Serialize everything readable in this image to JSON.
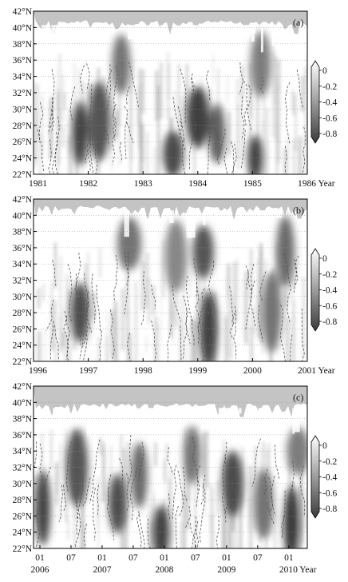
{
  "chart_data": [
    {
      "type": "heatmap",
      "panel_label": "(a)",
      "x_start_year": 1981,
      "x_end_year": 1986,
      "x_ticks": [
        "1981",
        "1982",
        "1983",
        "1984",
        "1985",
        "1986 Year"
      ],
      "y_ticks": [
        "22°N",
        "24°N",
        "26°N",
        "28°N",
        "30°N",
        "32°N",
        "34°N",
        "36°N",
        "38°N",
        "40°N",
        "42°N"
      ],
      "ylim": [
        22,
        42
      ],
      "grid": true,
      "colorbar": {
        "ticks": [
          "0",
          "-0.2",
          "-0.4",
          "-0.6",
          "-0.8"
        ],
        "range": [
          -0.9,
          0.1
        ]
      },
      "masked_top_latitude": 40.5,
      "dark_anomalies": [
        {
          "t": 1981.85,
          "lat": 27.0,
          "value": -0.85
        },
        {
          "t": 1982.2,
          "lat": 28.5,
          "value": -0.75
        },
        {
          "t": 1982.6,
          "lat": 35.5,
          "value": -0.6
        },
        {
          "t": 1983.55,
          "lat": 24.5,
          "value": -0.8
        },
        {
          "t": 1984.0,
          "lat": 29.0,
          "value": -0.85
        },
        {
          "t": 1984.35,
          "lat": 27.0,
          "value": -0.7
        },
        {
          "t": 1985.05,
          "lat": 24.0,
          "value": -0.85
        },
        {
          "t": 1985.15,
          "lat": 35.5,
          "value": -0.55
        }
      ]
    },
    {
      "type": "heatmap",
      "panel_label": "(b)",
      "x_start_year": 1996,
      "x_end_year": 2001,
      "x_ticks": [
        "1996",
        "1997",
        "1998",
        "1999",
        "2000",
        "2001 Year"
      ],
      "y_ticks": [
        "22°N",
        "24°N",
        "26°N",
        "28°N",
        "30°N",
        "32°N",
        "34°N",
        "36°N",
        "38°N",
        "40°N",
        "42°N"
      ],
      "ylim": [
        22,
        42
      ],
      "grid": true,
      "colorbar": {
        "ticks": [
          "0",
          "-0.2",
          "-0.4",
          "-0.6",
          "-0.8"
        ],
        "range": [
          -0.9,
          0.1
        ]
      },
      "masked_top_latitude": 40.8,
      "dark_anomalies": [
        {
          "t": 1996.85,
          "lat": 28.0,
          "value": -0.8
        },
        {
          "t": 1997.75,
          "lat": 36.5,
          "value": -0.6
        },
        {
          "t": 1998.6,
          "lat": 35.0,
          "value": -0.5
        },
        {
          "t": 1999.1,
          "lat": 35.5,
          "value": -0.75
        },
        {
          "t": 1999.2,
          "lat": 26.0,
          "value": -0.85
        },
        {
          "t": 2000.35,
          "lat": 28.0,
          "value": -0.6
        },
        {
          "t": 2000.6,
          "lat": 35.5,
          "value": -0.65
        }
      ]
    },
    {
      "type": "heatmap",
      "panel_label": "(c)",
      "x_start_year": 2006,
      "x_end_year": 2010.4,
      "x_ticks": [
        "01",
        "07",
        "01",
        "07",
        "01",
        "07",
        "01",
        "07",
        "01"
      ],
      "x_tick_years": [
        "2006",
        "2007",
        "2008",
        "2009",
        "2010 Year"
      ],
      "y_ticks": [
        "22°N",
        "24°N",
        "26°N",
        "28°N",
        "30°N",
        "32°N",
        "34°N",
        "36°N",
        "38°N",
        "40°N",
        "42°N"
      ],
      "ylim": [
        22,
        42
      ],
      "grid": true,
      "colorbar": {
        "ticks": [
          "0",
          "-0.2",
          "-0.4",
          "-0.6",
          "-0.8"
        ],
        "range": [
          -0.9,
          0.1
        ]
      },
      "masked_top_latitude": 39.5,
      "dark_anomalies": [
        {
          "t": 2006.15,
          "lat": 27.0,
          "value": -0.85
        },
        {
          "t": 2006.7,
          "lat": 32.0,
          "value": -0.75
        },
        {
          "t": 2007.35,
          "lat": 27.5,
          "value": -0.8
        },
        {
          "t": 2007.7,
          "lat": 31.0,
          "value": -0.65
        },
        {
          "t": 2008.05,
          "lat": 24.0,
          "value": -0.85
        },
        {
          "t": 2008.55,
          "lat": 33.5,
          "value": -0.6
        },
        {
          "t": 2009.2,
          "lat": 30.0,
          "value": -0.8
        },
        {
          "t": 2009.7,
          "lat": 27.5,
          "value": -0.6
        },
        {
          "t": 2010.15,
          "lat": 25.0,
          "value": -0.9
        },
        {
          "t": 2010.25,
          "lat": 34.0,
          "value": -0.55
        }
      ]
    }
  ]
}
